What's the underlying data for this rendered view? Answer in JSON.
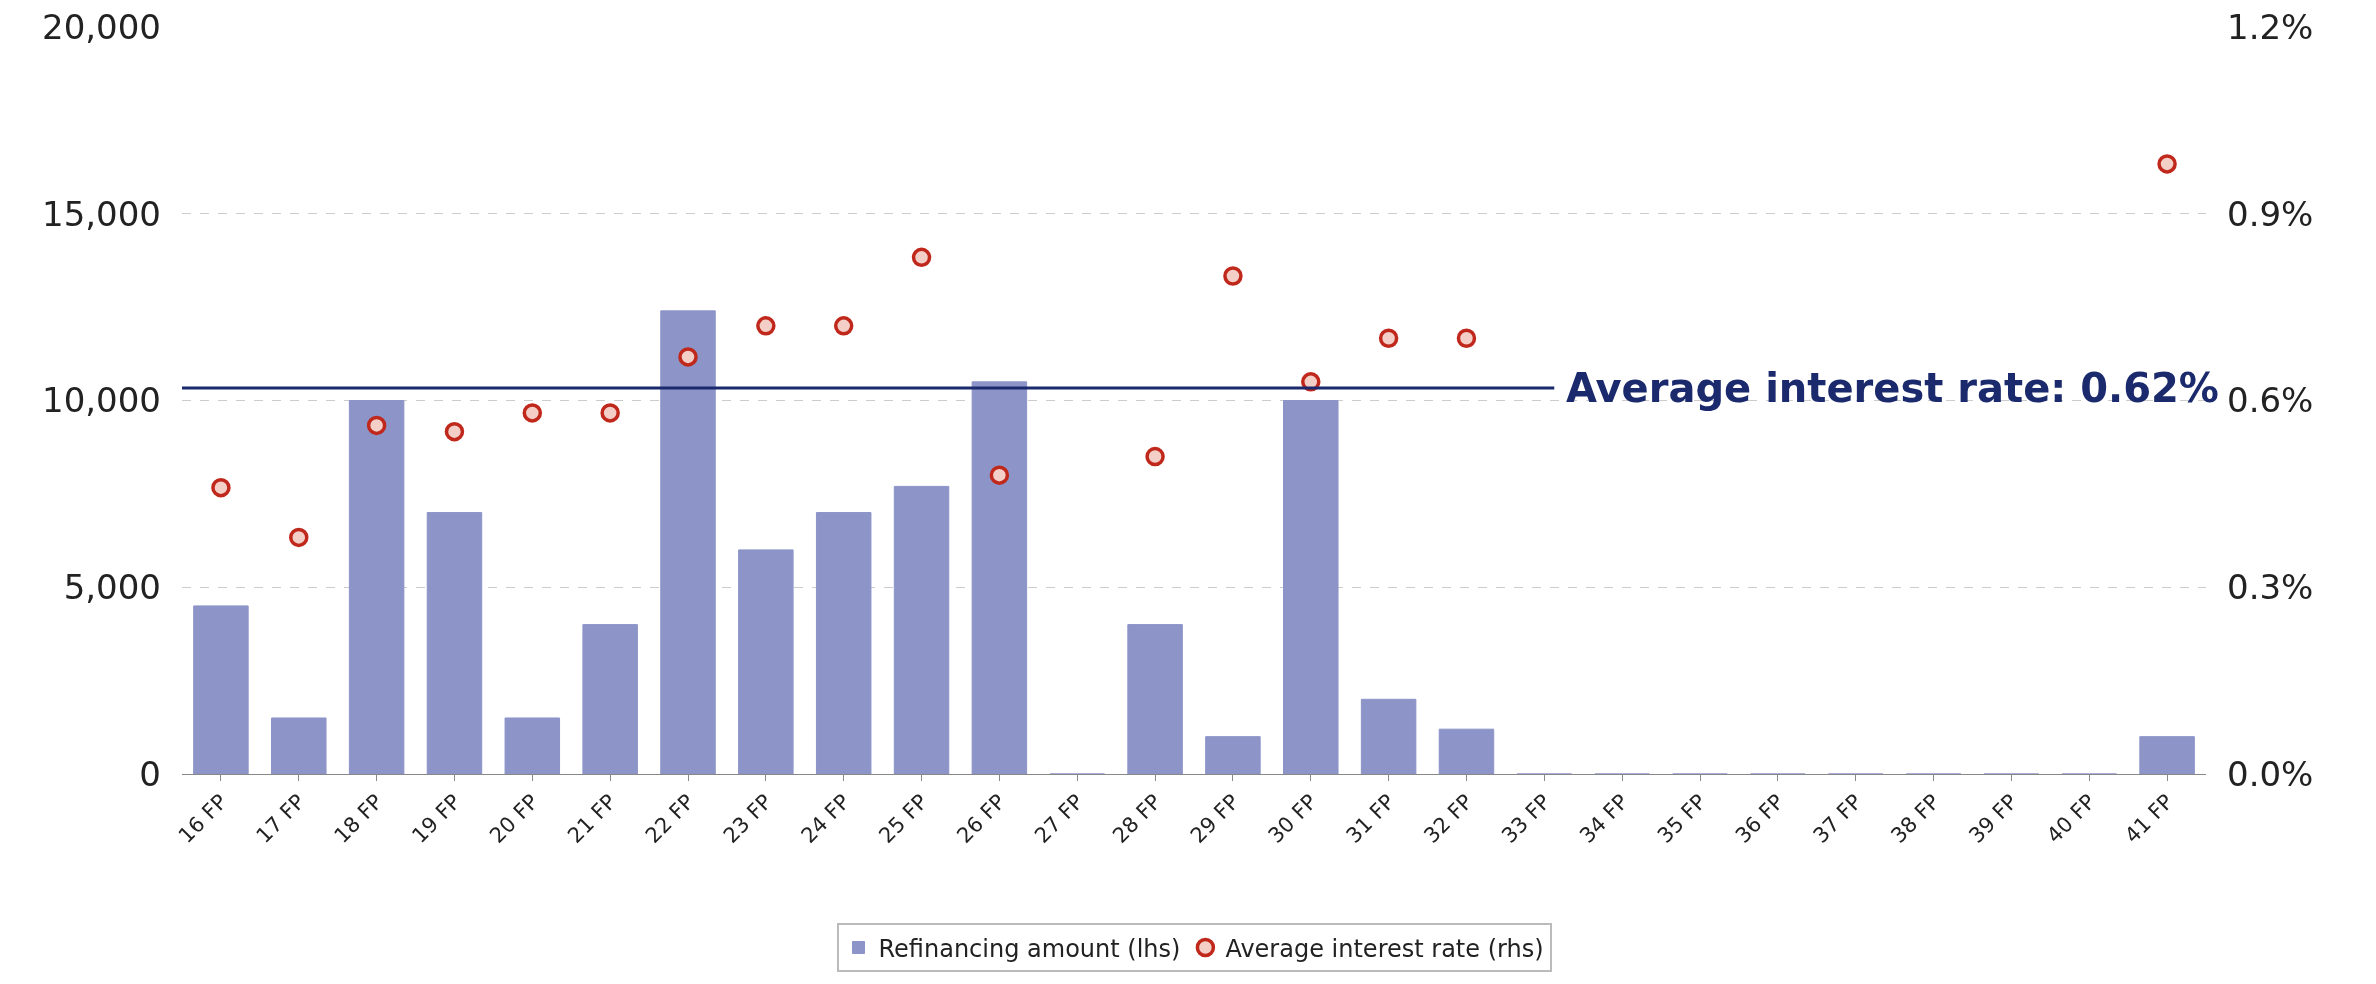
{
  "chart_data": {
    "type": "bar",
    "categories": [
      "16 FP",
      "17 FP",
      "18 FP",
      "19 FP",
      "20 FP",
      "21 FP",
      "22 FP",
      "23 FP",
      "24 FP",
      "25 FP",
      "26 FP",
      "27 FP",
      "28 FP",
      "29 FP",
      "30 FP",
      "31 FP",
      "32 FP",
      "33 FP",
      "34 FP",
      "35 FP",
      "36 FP",
      "37 FP",
      "38 FP",
      "39 FP",
      "40 FP",
      "41 FP"
    ],
    "series": [
      {
        "name": "Refinancing amount (lhs)",
        "color": "#8c94c8",
        "values": [
          4500,
          1500,
          10000,
          7000,
          1500,
          4000,
          12400,
          6000,
          7000,
          7700,
          10500,
          0,
          4000,
          1000,
          10000,
          2000,
          1200,
          0,
          0,
          0,
          0,
          0,
          0,
          0,
          0,
          1000
        ]
      },
      {
        "name": "Average interest rate (rhs)",
        "type": "scatter",
        "axis": "y2",
        "color": "#c0281c",
        "values": [
          0.46,
          0.38,
          0.56,
          0.55,
          0.58,
          0.58,
          0.67,
          0.72,
          0.72,
          0.83,
          0.48,
          null,
          0.51,
          0.8,
          0.63,
          0.7,
          0.7,
          null,
          null,
          null,
          null,
          null,
          null,
          null,
          null,
          0.98
        ]
      }
    ],
    "ylim": [
      0,
      20000
    ],
    "yticks": [
      {
        "value": 0,
        "label": "0"
      },
      {
        "value": 5000,
        "label": "5,000"
      },
      {
        "value": 10000,
        "label": "10,000"
      },
      {
        "value": 15000,
        "label": "15,000"
      },
      {
        "value": 20000,
        "label": "20,000"
      }
    ],
    "y2lim": [
      0,
      1.2
    ],
    "y2ticks": [
      {
        "value": 0,
        "label": "0.0%"
      },
      {
        "value": 0.3,
        "label": "0.3%"
      },
      {
        "value": 0.6,
        "label": "0.6%"
      },
      {
        "value": 0.9,
        "label": "0.9%"
      },
      {
        "value": 1.2,
        "label": "1.2%"
      }
    ],
    "ref_lines": [
      {
        "axis": "y2",
        "value": 0.62,
        "label": "Average interest rate: 0.62%",
        "color": "#1a2a6c"
      }
    ],
    "grid": "y",
    "legend": "bottom",
    "marker": "circle"
  }
}
